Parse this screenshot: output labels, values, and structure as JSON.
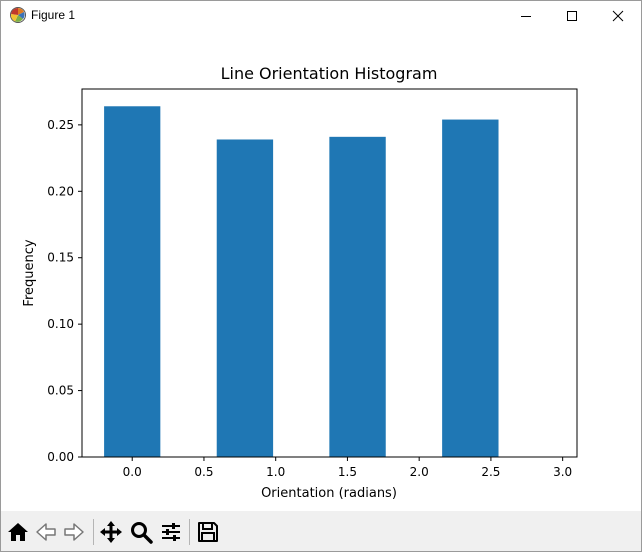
{
  "window": {
    "title": "Figure 1",
    "icon": "matplotlib-icon"
  },
  "controls": {
    "minimize_icon": "minimize-icon",
    "maximize_icon": "maximize-icon",
    "close_icon": "close-icon"
  },
  "toolbar": {
    "items": [
      "home-icon",
      "back-arrow-icon",
      "forward-arrow-icon",
      "pan-move-icon",
      "zoom-magnifier-icon",
      "configure-subplots-icon",
      "save-floppy-icon"
    ]
  },
  "colors": {
    "bar": "#1f77b4",
    "axes": "#000000",
    "toolbar_bg": "#f0f0f0"
  },
  "chart_data": {
    "type": "bar",
    "title": "Line Orientation Histogram",
    "xlabel": "Orientation (radians)",
    "ylabel": "Frequency",
    "bars": [
      {
        "x_left": -0.196,
        "x_right": 0.196,
        "value": 0.264
      },
      {
        "x_left": 0.589,
        "x_right": 0.982,
        "value": 0.239
      },
      {
        "x_left": 1.374,
        "x_right": 1.767,
        "value": 0.241
      },
      {
        "x_left": 2.16,
        "x_right": 2.553,
        "value": 0.254
      }
    ],
    "xlim": [
      -0.35,
      3.1
    ],
    "ylim": [
      0,
      0.277
    ],
    "xticks": [
      0.0,
      0.5,
      1.0,
      1.5,
      2.0,
      2.5,
      3.0
    ],
    "xtick_labels": [
      "0.0",
      "0.5",
      "1.0",
      "1.5",
      "2.0",
      "2.5",
      "3.0"
    ],
    "yticks": [
      0.0,
      0.05,
      0.1,
      0.15,
      0.2,
      0.25
    ],
    "ytick_labels": [
      "0.00",
      "0.05",
      "0.10",
      "0.15",
      "0.20",
      "0.25"
    ],
    "grid": false,
    "legend": "none"
  }
}
